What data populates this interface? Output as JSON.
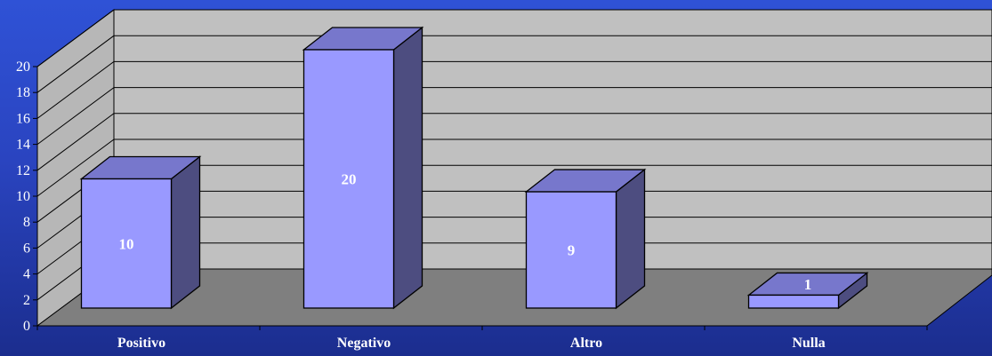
{
  "chart_data": {
    "type": "bar",
    "title": "",
    "xlabel": "",
    "ylabel": "",
    "categories": [
      "Positivo",
      "Negativo",
      "Altro",
      "Nulla"
    ],
    "values": [
      10,
      20,
      9,
      1
    ],
    "data_labels": [
      "10",
      "20",
      "9",
      "1"
    ],
    "ylim": [
      0,
      20
    ],
    "yticks": [
      "0",
      "2",
      "4",
      "6",
      "8",
      "10",
      "12",
      "14",
      "16",
      "18",
      "20"
    ],
    "grid": true,
    "legend": "none",
    "style": "3d-column",
    "colors": {
      "bar_front": "#9999ff",
      "bar_top": "#7777cc",
      "bar_side": "#4d4d80",
      "back_wall": "#c0c0c0",
      "side_wall": "#b7b7b7",
      "floor": "#7f7f7f",
      "text": "#ffffff"
    }
  }
}
